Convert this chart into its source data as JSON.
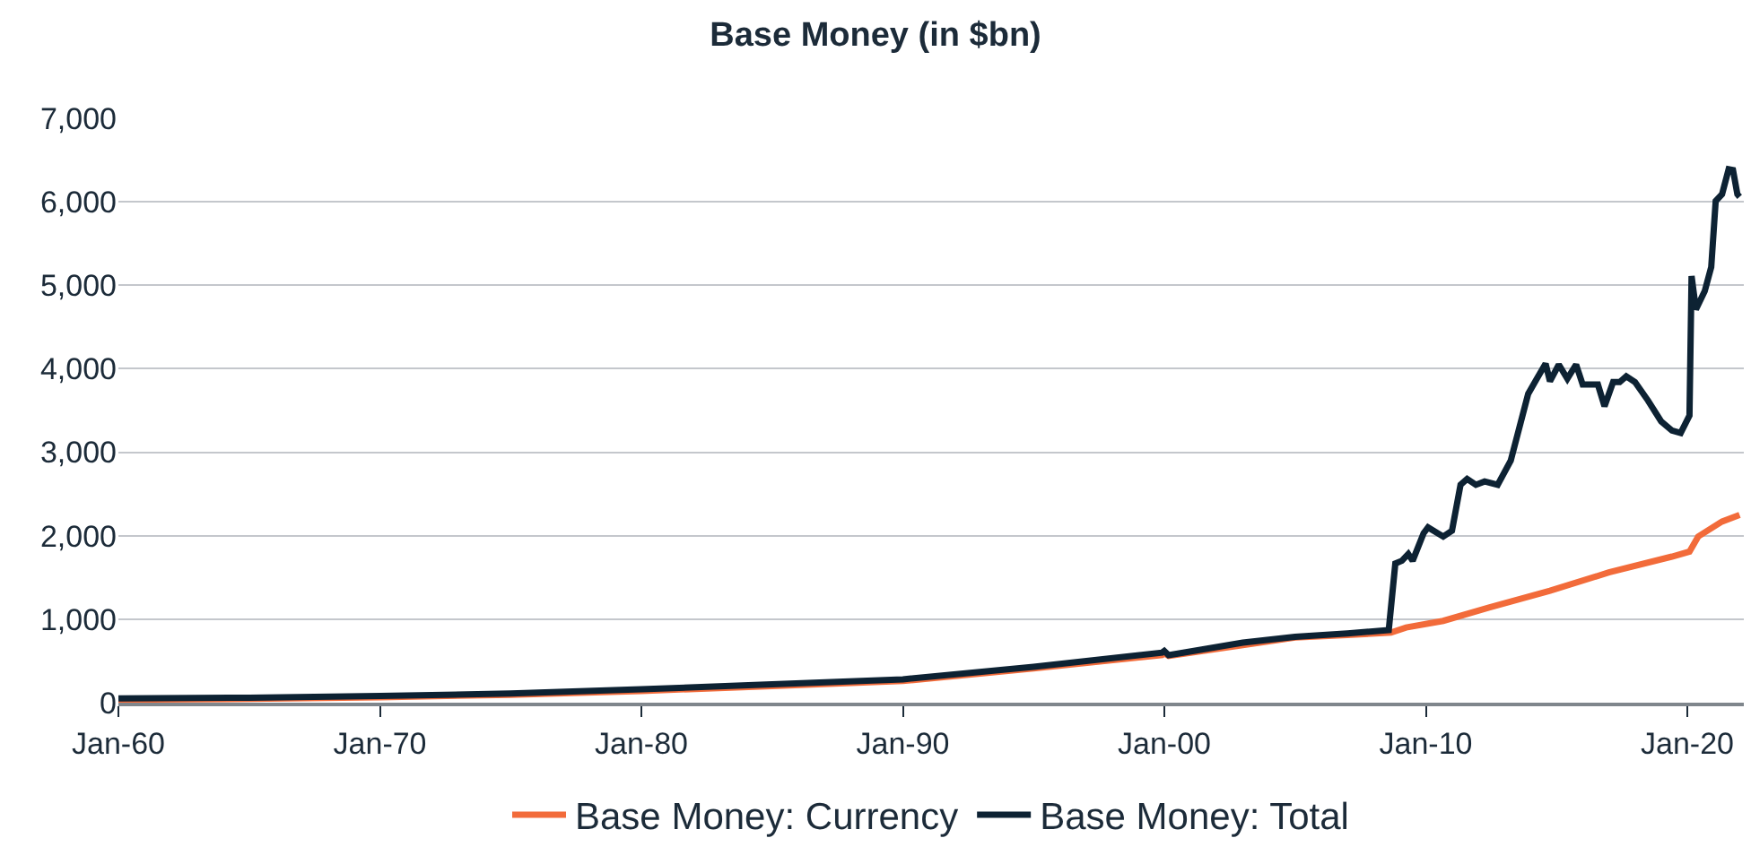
{
  "chart_data": {
    "type": "line",
    "title": "Base Money (in $bn)",
    "xlim": [
      "1960-01",
      "2022-03"
    ],
    "xticks": [
      {
        "value": "1960-01",
        "label": "Jan-60"
      },
      {
        "value": "1970-01",
        "label": "Jan-70"
      },
      {
        "value": "1980-01",
        "label": "Jan-80"
      },
      {
        "value": "1990-01",
        "label": "Jan-90"
      },
      {
        "value": "2000-01",
        "label": "Jan-00"
      },
      {
        "value": "2010-01",
        "label": "Jan-10"
      },
      {
        "value": "2020-01",
        "label": "Jan-20"
      }
    ],
    "ylim": [
      0,
      7000
    ],
    "yticks": [
      0,
      {
        "value": 1000,
        "label": "1,000"
      },
      {
        "value": 2000,
        "label": "2,000"
      },
      {
        "value": 3000,
        "label": "3,000"
      },
      {
        "value": 4000,
        "label": "4,000"
      },
      {
        "value": 5000,
        "label": "5,000"
      },
      {
        "value": 6000,
        "label": "6,000"
      },
      {
        "value": 7000,
        "label": "7,000"
      }
    ],
    "grid": "y",
    "legend": "bottom",
    "marker": "none",
    "line_style": "solid",
    "series": [
      {
        "name": "Base Money: Currency",
        "color": "#f26b3a",
        "x": [
          "1960-01",
          "1965-01",
          "1970-01",
          "1975-01",
          "1980-01",
          "1985-01",
          "1990-01",
          "1995-01",
          "1999-12",
          "2000-01",
          "2000-03",
          "2003-01",
          "2005-01",
          "2007-01",
          "2008-09",
          "2009-04",
          "2010-09",
          "2012-06",
          "2014-10",
          "2017-01",
          "2019-06",
          "2020-02",
          "2020-06",
          "2021-05",
          "2022-01"
        ],
        "values": [
          35,
          45,
          65,
          95,
          140,
          200,
          260,
          410,
          570,
          590,
          560,
          690,
          780,
          810,
          840,
          900,
          980,
          1140,
          1340,
          1560,
          1750,
          1810,
          1990,
          2170,
          2250
        ]
      },
      {
        "name": "Base Money: Total",
        "color": "#0d2233",
        "x": [
          "1960-01",
          "1965-01",
          "1970-01",
          "1975-01",
          "1980-01",
          "1985-01",
          "1990-01",
          "1995-01",
          "1999-12",
          "2000-01",
          "2000-03",
          "2003-01",
          "2005-01",
          "2007-01",
          "2008-08",
          "2008-11",
          "2009-02",
          "2009-05",
          "2009-07",
          "2009-12",
          "2010-02",
          "2010-09",
          "2011-01",
          "2011-05",
          "2011-08",
          "2011-12",
          "2012-04",
          "2012-10",
          "2013-04",
          "2013-12",
          "2014-04",
          "2014-08",
          "2014-10",
          "2015-02",
          "2015-06",
          "2015-10",
          "2016-01",
          "2016-08",
          "2016-11",
          "2017-03",
          "2017-06",
          "2017-09",
          "2018-01",
          "2018-07",
          "2019-01",
          "2019-06",
          "2019-10",
          "2020-02",
          "2020-03",
          "2020-05",
          "2020-09",
          "2020-12",
          "2021-02",
          "2021-05",
          "2021-08",
          "2021-10",
          "2021-12",
          "2022-01"
        ],
        "values": [
          50,
          60,
          80,
          110,
          160,
          220,
          280,
          430,
          600,
          620,
          570,
          720,
          790,
          830,
          870,
          1667,
          1700,
          1780,
          1700,
          2030,
          2100,
          1990,
          2060,
          2610,
          2680,
          2610,
          2650,
          2610,
          2900,
          3700,
          3880,
          4060,
          3850,
          4050,
          3880,
          4050,
          3810,
          3810,
          3550,
          3840,
          3840,
          3910,
          3840,
          3620,
          3370,
          3260,
          3230,
          3440,
          5110,
          4710,
          4930,
          5220,
          6010,
          6090,
          6390,
          6380,
          6090,
          6060
        ]
      }
    ]
  }
}
